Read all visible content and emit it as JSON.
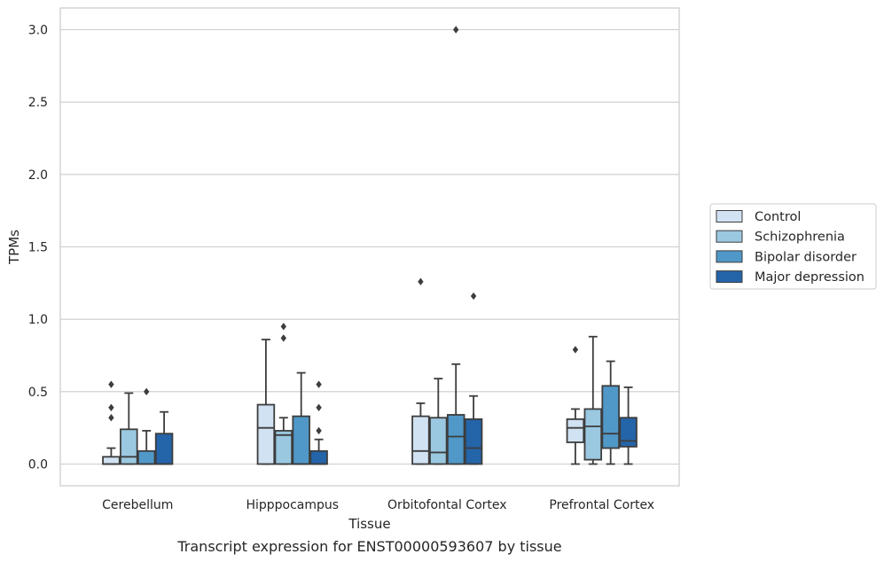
{
  "caption": "Transcript expression for ENST00000593607 by tissue",
  "chart_data": {
    "type": "box",
    "xlabel": "Tissue",
    "ylabel": "TPMs",
    "ylim": [
      -0.15,
      3.15
    ],
    "yticks": [
      "0.0",
      "0.5",
      "1.0",
      "1.5",
      "2.0",
      "2.5",
      "3.0"
    ],
    "grid": true,
    "legend_position": "right",
    "categories": [
      "Cerebellum",
      "Hipppocampus",
      "Orbitofontal Cortex",
      "Prefrontal Cortex"
    ],
    "series": [
      {
        "name": "Control",
        "color": "#d1e2f2",
        "boxes": [
          {
            "whislo": 0.0,
            "q1": 0.0,
            "med": 0.0,
            "q3": 0.05,
            "whishi": 0.11,
            "fliers": [
              0.32,
              0.39,
              0.55
            ]
          },
          {
            "whislo": 0.0,
            "q1": 0.0,
            "med": 0.25,
            "q3": 0.41,
            "whishi": 0.86,
            "fliers": []
          },
          {
            "whislo": 0.0,
            "q1": 0.0,
            "med": 0.09,
            "q3": 0.33,
            "whishi": 0.42,
            "fliers": [
              1.26
            ]
          },
          {
            "whislo": 0.0,
            "q1": 0.15,
            "med": 0.25,
            "q3": 0.31,
            "whishi": 0.38,
            "fliers": [
              0.79
            ]
          }
        ]
      },
      {
        "name": "Schizophrenia",
        "color": "#9ac8e0",
        "boxes": [
          {
            "whislo": 0.0,
            "q1": 0.0,
            "med": 0.05,
            "q3": 0.24,
            "whishi": 0.49,
            "fliers": []
          },
          {
            "whislo": 0.0,
            "q1": 0.0,
            "med": 0.2,
            "q3": 0.23,
            "whishi": 0.32,
            "fliers": [
              0.87,
              0.95
            ]
          },
          {
            "whislo": 0.0,
            "q1": 0.0,
            "med": 0.08,
            "q3": 0.32,
            "whishi": 0.59,
            "fliers": []
          },
          {
            "whislo": 0.0,
            "q1": 0.03,
            "med": 0.26,
            "q3": 0.38,
            "whishi": 0.88,
            "fliers": []
          }
        ]
      },
      {
        "name": "Bipolar disorder",
        "color": "#5098c8",
        "boxes": [
          {
            "whislo": 0.0,
            "q1": 0.0,
            "med": 0.0,
            "q3": 0.09,
            "whishi": 0.23,
            "fliers": [
              0.5
            ]
          },
          {
            "whislo": 0.0,
            "q1": 0.0,
            "med": 0.0,
            "q3": 0.33,
            "whishi": 0.63,
            "fliers": []
          },
          {
            "whislo": 0.0,
            "q1": 0.0,
            "med": 0.19,
            "q3": 0.34,
            "whishi": 0.69,
            "fliers": [
              3.0
            ]
          },
          {
            "whislo": 0.0,
            "q1": 0.11,
            "med": 0.21,
            "q3": 0.54,
            "whishi": 0.71,
            "fliers": []
          }
        ]
      },
      {
        "name": "Major depression",
        "color": "#2464a8",
        "boxes": [
          {
            "whislo": 0.0,
            "q1": 0.0,
            "med": 0.0,
            "q3": 0.21,
            "whishi": 0.36,
            "fliers": []
          },
          {
            "whislo": 0.0,
            "q1": 0.0,
            "med": 0.0,
            "q3": 0.09,
            "whishi": 0.17,
            "fliers": [
              0.23,
              0.39,
              0.55
            ]
          },
          {
            "whislo": 0.0,
            "q1": 0.0,
            "med": 0.11,
            "q3": 0.31,
            "whishi": 0.47,
            "fliers": [
              1.16
            ]
          },
          {
            "whislo": 0.0,
            "q1": 0.12,
            "med": 0.16,
            "q3": 0.32,
            "whishi": 0.53,
            "fliers": []
          }
        ]
      }
    ]
  }
}
